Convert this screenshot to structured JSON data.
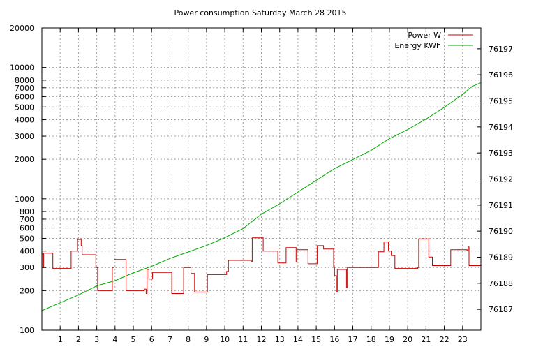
{
  "chart_data": {
    "type": "line",
    "title": "Power consumption Saturday March 28 2015",
    "x_ticks": [
      1,
      2,
      3,
      4,
      5,
      6,
      7,
      8,
      9,
      10,
      11,
      12,
      13,
      14,
      15,
      16,
      17,
      18,
      19,
      20,
      21,
      22,
      23
    ],
    "xlim": [
      0,
      24
    ],
    "grid": true,
    "legend_position": "top-right",
    "y_left": {
      "scale": "log",
      "ylim": [
        100,
        20000
      ],
      "ticks": [
        100,
        200,
        300,
        400,
        500,
        600,
        700,
        800,
        1000,
        2000,
        3000,
        4000,
        5000,
        6000,
        7000,
        8000,
        10000,
        20000
      ],
      "tick_labels": [
        "100",
        "200",
        "300",
        "400",
        "500",
        "600",
        "700",
        "800",
        "1000",
        "2000",
        "3000",
        "4000",
        "5000",
        "6000",
        "7000",
        "8000",
        "10000",
        "20000"
      ]
    },
    "y_right": {
      "scale": "linear",
      "ylim": [
        76186.2,
        76197.8
      ],
      "ticks": [
        76187,
        76188,
        76189,
        76190,
        76191,
        76192,
        76193,
        76194,
        76195,
        76196,
        76197
      ],
      "tick_labels": [
        "76187",
        "76188",
        "76189",
        "76190",
        "76191",
        "76192",
        "76193",
        "76194",
        "76195",
        "76196",
        "76197"
      ]
    },
    "series": [
      {
        "name": "Power W",
        "axis": "left",
        "color": "#cc0000",
        "step": true,
        "points": [
          [
            0,
            380
          ],
          [
            0.05,
            300
          ],
          [
            0.1,
            385
          ],
          [
            0.6,
            295
          ],
          [
            1.6,
            400
          ],
          [
            1.95,
            490
          ],
          [
            2.15,
            440
          ],
          [
            2.2,
            375
          ],
          [
            2.95,
            300
          ],
          [
            3.05,
            200
          ],
          [
            3.85,
            300
          ],
          [
            3.95,
            345
          ],
          [
            4.6,
            200
          ],
          [
            5.6,
            205
          ],
          [
            5.7,
            190
          ],
          [
            5.75,
            290
          ],
          [
            5.85,
            245
          ],
          [
            6.05,
            275
          ],
          [
            7.1,
            190
          ],
          [
            7.75,
            300
          ],
          [
            8.15,
            270
          ],
          [
            8.35,
            195
          ],
          [
            9.05,
            265
          ],
          [
            10.1,
            280
          ],
          [
            10.2,
            340
          ],
          [
            11.45,
            330
          ],
          [
            11.5,
            505
          ],
          [
            12.1,
            400
          ],
          [
            12.9,
            325
          ],
          [
            13.35,
            425
          ],
          [
            13.9,
            330
          ],
          [
            13.95,
            410
          ],
          [
            14.55,
            320
          ],
          [
            15.05,
            440
          ],
          [
            15.4,
            415
          ],
          [
            15.95,
            300
          ],
          [
            16.0,
            260
          ],
          [
            16.1,
            195
          ],
          [
            16.15,
            290
          ],
          [
            16.65,
            210
          ],
          [
            16.7,
            300
          ],
          [
            18.4,
            395
          ],
          [
            18.7,
            470
          ],
          [
            18.95,
            400
          ],
          [
            19.1,
            370
          ],
          [
            19.3,
            295
          ],
          [
            20.55,
            300
          ],
          [
            20.6,
            495
          ],
          [
            21.15,
            360
          ],
          [
            21.35,
            310
          ],
          [
            22.35,
            410
          ],
          [
            23.25,
            405
          ],
          [
            23.3,
            430
          ],
          [
            23.35,
            310
          ],
          [
            24,
            310
          ]
        ]
      },
      {
        "name": "Energy KWh",
        "axis": "right",
        "color": "#00aa00",
        "step": false,
        "points": [
          [
            0,
            76186.95
          ],
          [
            1,
            76187.25
          ],
          [
            2,
            76187.55
          ],
          [
            3,
            76187.9
          ],
          [
            4,
            76188.1
          ],
          [
            5,
            76188.4
          ],
          [
            6,
            76188.65
          ],
          [
            7,
            76188.95
          ],
          [
            8,
            76189.2
          ],
          [
            9,
            76189.45
          ],
          [
            10,
            76189.75
          ],
          [
            11,
            76190.1
          ],
          [
            12,
            76190.65
          ],
          [
            13,
            76191.05
          ],
          [
            14,
            76191.5
          ],
          [
            15,
            76191.95
          ],
          [
            16,
            76192.4
          ],
          [
            17,
            76192.75
          ],
          [
            18,
            76193.1
          ],
          [
            19,
            76193.55
          ],
          [
            20,
            76193.9
          ],
          [
            21,
            76194.3
          ],
          [
            22,
            76194.75
          ],
          [
            23,
            76195.25
          ],
          [
            23.5,
            76195.55
          ],
          [
            24,
            76195.7
          ]
        ]
      }
    ]
  }
}
